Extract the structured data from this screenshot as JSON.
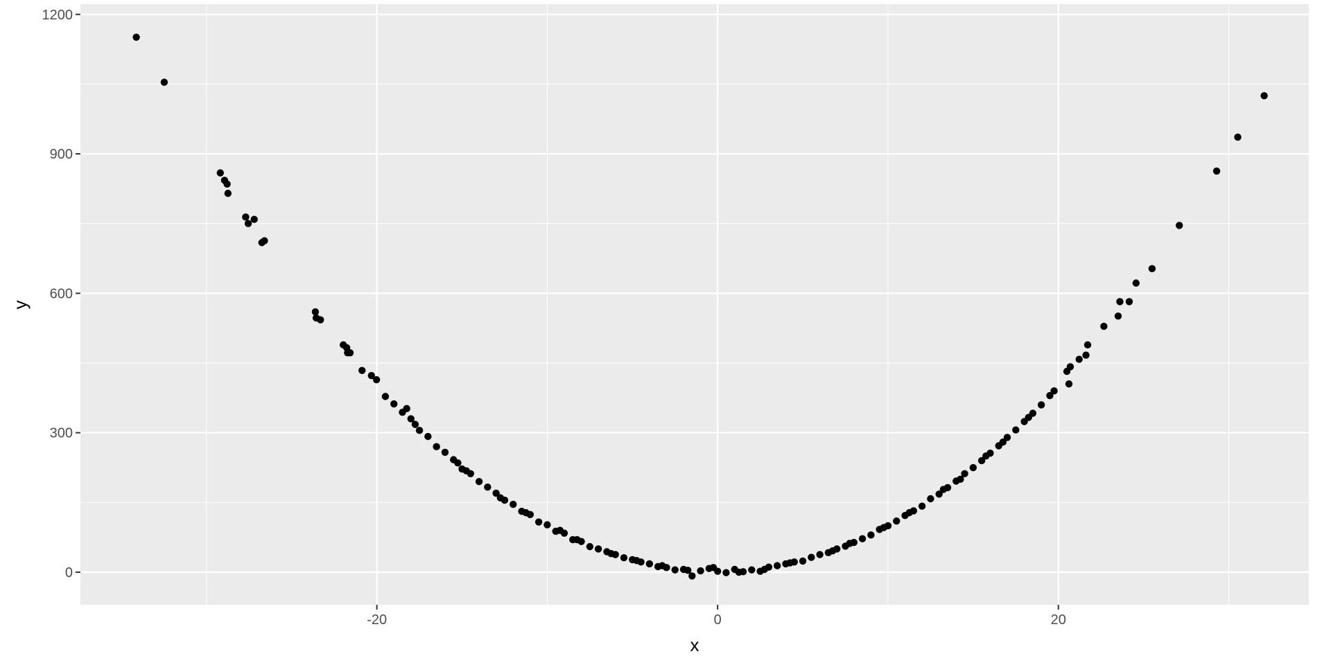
{
  "chart_data": {
    "type": "scatter",
    "title": "",
    "xlabel": "x",
    "ylabel": "y",
    "xlim": [
      -37.4,
      34.7
    ],
    "ylim": [
      -70,
      1222
    ],
    "x_ticks": [
      -20,
      0,
      20
    ],
    "y_ticks": [
      0,
      300,
      600,
      900,
      1200
    ],
    "x_tick_labels": [
      "-20",
      "0",
      "20"
    ],
    "y_tick_labels": [
      "0",
      "300",
      "600",
      "900",
      "1200"
    ],
    "grid": true,
    "legend": "none",
    "colors": {
      "panel": "#ebebeb",
      "grid": "#ffffff",
      "point": "#000000"
    },
    "points": [
      [
        -34.12,
        1151
      ],
      [
        -32.48,
        1054
      ],
      [
        -29.19,
        859
      ],
      [
        -28.94,
        843
      ],
      [
        -28.79,
        835
      ],
      [
        -28.74,
        815
      ],
      [
        -27.7,
        764
      ],
      [
        -27.55,
        750
      ],
      [
        -27.2,
        759
      ],
      [
        -26.75,
        709
      ],
      [
        -26.6,
        713
      ],
      [
        -23.61,
        560
      ],
      [
        -23.56,
        547
      ],
      [
        -23.31,
        543
      ],
      [
        -21.97,
        489
      ],
      [
        -21.77,
        483
      ],
      [
        -21.72,
        472
      ],
      [
        -21.57,
        472
      ],
      [
        -20.87,
        434
      ],
      [
        -20.32,
        423
      ],
      [
        -20.02,
        414
      ],
      [
        -19.5,
        378
      ],
      [
        -19.0,
        362
      ],
      [
        -18.5,
        344
      ],
      [
        -18.0,
        330
      ],
      [
        -17.5,
        305
      ],
      [
        -17.0,
        292
      ],
      [
        -16.5,
        270
      ],
      [
        -16.0,
        258
      ],
      [
        -15.5,
        242
      ],
      [
        -15.0,
        222
      ],
      [
        -14.5,
        212
      ],
      [
        -14.0,
        195
      ],
      [
        -13.5,
        183
      ],
      [
        -13.0,
        170
      ],
      [
        -12.5,
        155
      ],
      [
        -12.0,
        146
      ],
      [
        -11.5,
        131
      ],
      [
        -11.0,
        124
      ],
      [
        -10.5,
        108
      ],
      [
        -10.0,
        102
      ],
      [
        -9.5,
        88
      ],
      [
        -9.0,
        84
      ],
      [
        -8.5,
        70
      ],
      [
        -8.0,
        66
      ],
      [
        -7.5,
        55
      ],
      [
        -7.0,
        50
      ],
      [
        -6.5,
        44
      ],
      [
        -6.0,
        38
      ],
      [
        -5.5,
        31
      ],
      [
        -5.0,
        27
      ],
      [
        -4.5,
        22
      ],
      [
        -4.0,
        18
      ],
      [
        -3.5,
        12
      ],
      [
        -3.0,
        10
      ],
      [
        -2.5,
        5
      ],
      [
        -2.0,
        6
      ],
      [
        -1.5,
        -8
      ],
      [
        -1.0,
        3
      ],
      [
        -0.5,
        8
      ],
      [
        0,
        2
      ],
      [
        0.5,
        -1
      ],
      [
        1.0,
        6
      ],
      [
        1.5,
        1
      ],
      [
        2.0,
        5
      ],
      [
        2.5,
        2
      ],
      [
        3.0,
        11
      ],
      [
        3.5,
        14
      ],
      [
        4.0,
        18
      ],
      [
        4.5,
        22
      ],
      [
        5.0,
        24
      ],
      [
        5.5,
        32
      ],
      [
        6.0,
        38
      ],
      [
        6.5,
        42
      ],
      [
        7.0,
        50
      ],
      [
        7.5,
        56
      ],
      [
        8.0,
        64
      ],
      [
        8.5,
        72
      ],
      [
        9.0,
        80
      ],
      [
        9.5,
        92
      ],
      [
        10.0,
        100
      ],
      [
        10.5,
        110
      ],
      [
        11.0,
        122
      ],
      [
        11.5,
        132
      ],
      [
        12.0,
        142
      ],
      [
        12.5,
        158
      ],
      [
        13.0,
        168
      ],
      [
        13.5,
        182
      ],
      [
        14.0,
        196
      ],
      [
        14.5,
        212
      ],
      [
        15.0,
        225
      ],
      [
        15.5,
        240
      ],
      [
        16.0,
        256
      ],
      [
        16.5,
        272
      ],
      [
        17.0,
        290
      ],
      [
        17.5,
        306
      ],
      [
        18.0,
        324
      ],
      [
        18.5,
        342
      ],
      [
        19.0,
        360
      ],
      [
        19.5,
        380
      ],
      [
        -18.25,
        352
      ],
      [
        -17.75,
        318
      ],
      [
        -15.25,
        235
      ],
      [
        -14.75,
        218
      ],
      [
        -12.75,
        160
      ],
      [
        -11.25,
        128
      ],
      [
        -9.25,
        90
      ],
      [
        -8.25,
        70
      ],
      [
        -6.25,
        40
      ],
      [
        -4.75,
        25
      ],
      [
        -3.25,
        14
      ],
      [
        -1.75,
        4
      ],
      [
        -0.25,
        10
      ],
      [
        1.25,
        0
      ],
      [
        2.75,
        6
      ],
      [
        4.25,
        20
      ],
      [
        6.75,
        46
      ],
      [
        7.75,
        62
      ],
      [
        9.75,
        96
      ],
      [
        11.25,
        128
      ],
      [
        13.25,
        178
      ],
      [
        14.25,
        200
      ],
      [
        15.75,
        250
      ],
      [
        16.75,
        280
      ],
      [
        18.25,
        333
      ],
      [
        19.75,
        390
      ],
      [
        20.5,
        432
      ],
      [
        20.7,
        442
      ],
      [
        20.62,
        405
      ],
      [
        21.22,
        458
      ],
      [
        21.62,
        467
      ],
      [
        21.72,
        489
      ],
      [
        22.67,
        529
      ],
      [
        23.51,
        551
      ],
      [
        23.61,
        582
      ],
      [
        24.16,
        582
      ],
      [
        24.56,
        622
      ],
      [
        25.5,
        653
      ],
      [
        27.1,
        746
      ],
      [
        29.29,
        863
      ],
      [
        30.53,
        936
      ],
      [
        32.08,
        1025
      ]
    ]
  }
}
